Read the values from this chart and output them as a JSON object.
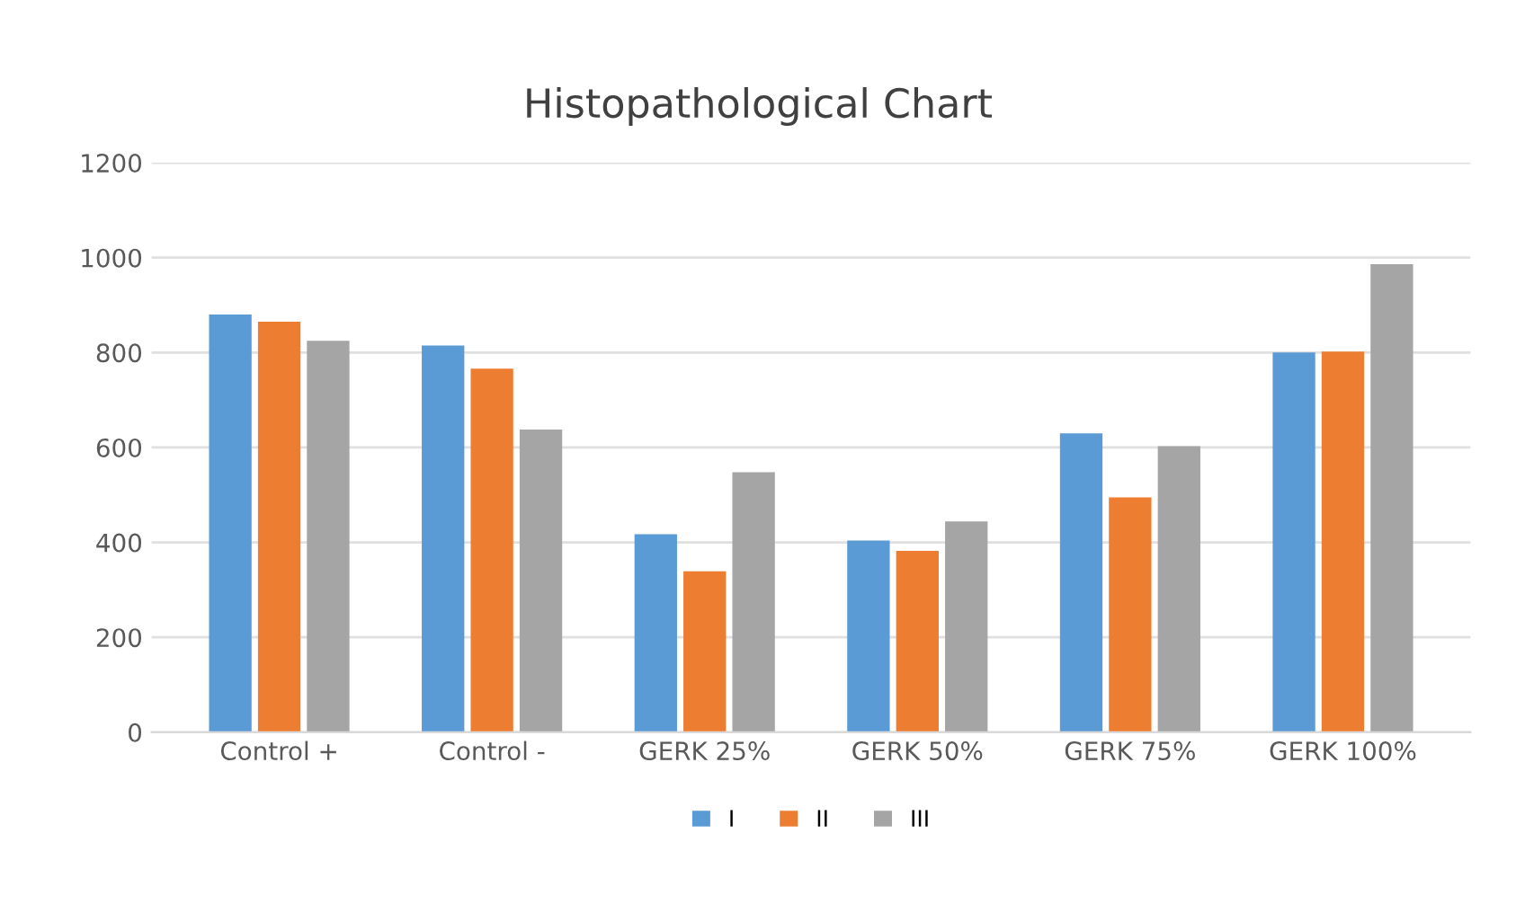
{
  "chart_data": {
    "type": "bar",
    "title": "Histopathological Chart",
    "categories": [
      "Control +",
      "Control -",
      "GERK 25%",
      "GERK 50%",
      "GERK 75%",
      "GERK 100%"
    ],
    "series": [
      {
        "name": "I",
        "color": "#5b9bd5",
        "values": [
          880,
          815,
          417,
          404,
          630,
          800
        ]
      },
      {
        "name": "II",
        "color": "#ed7d31",
        "values": [
          865,
          766,
          339,
          382,
          495,
          802
        ]
      },
      {
        "name": "III",
        "color": "#a5a5a5",
        "values": [
          825,
          638,
          548,
          444,
          603,
          986
        ]
      }
    ],
    "ylim": [
      0,
      1200
    ],
    "yticks": [
      0,
      200,
      400,
      600,
      800,
      1000,
      1200
    ],
    "grid": "y",
    "legend": "bottom"
  }
}
